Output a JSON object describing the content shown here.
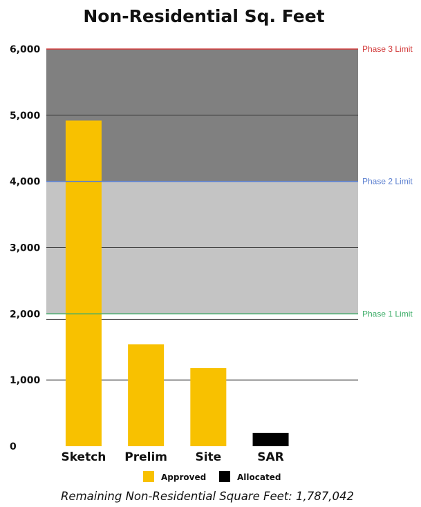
{
  "chart_data": {
    "type": "bar",
    "title": "Non-Residential Sq. Feet",
    "categories": [
      "Sketch",
      "Prelim",
      "Site",
      "SAR"
    ],
    "series": [
      {
        "name": "Approved",
        "color": "#F8C100",
        "values": [
          4920,
          1540,
          1180,
          0
        ]
      },
      {
        "name": "Allocated",
        "color": "#000000",
        "values": [
          0,
          0,
          0,
          200
        ]
      }
    ],
    "ylim": [
      0,
      6000
    ],
    "yticks": [
      0,
      1000,
      2000,
      3000,
      4000,
      5000,
      6000
    ],
    "ytick_labels": [
      "0",
      "1,000",
      "2,000",
      "3,000",
      "4,000",
      "5,000",
      "6,000"
    ],
    "grid": true,
    "legend_position": "bottom",
    "phase_limits": [
      {
        "label": "Phase 1 Limit",
        "value": 2000,
        "color": "#3FAE6A",
        "band_from": 2000,
        "band_color": "#C4C4C4"
      },
      {
        "label": "Phase 2 Limit",
        "value": 4000,
        "color": "#5B7FD0",
        "band_from": 4000,
        "band_color": "#808080"
      },
      {
        "label": "Phase 3 Limit",
        "value": 6000,
        "color": "#D23A3A",
        "band_from": 4000,
        "band_color": "#808080"
      }
    ],
    "footer": "Remaining Non-Residential Square Feet: 1,787,042"
  }
}
